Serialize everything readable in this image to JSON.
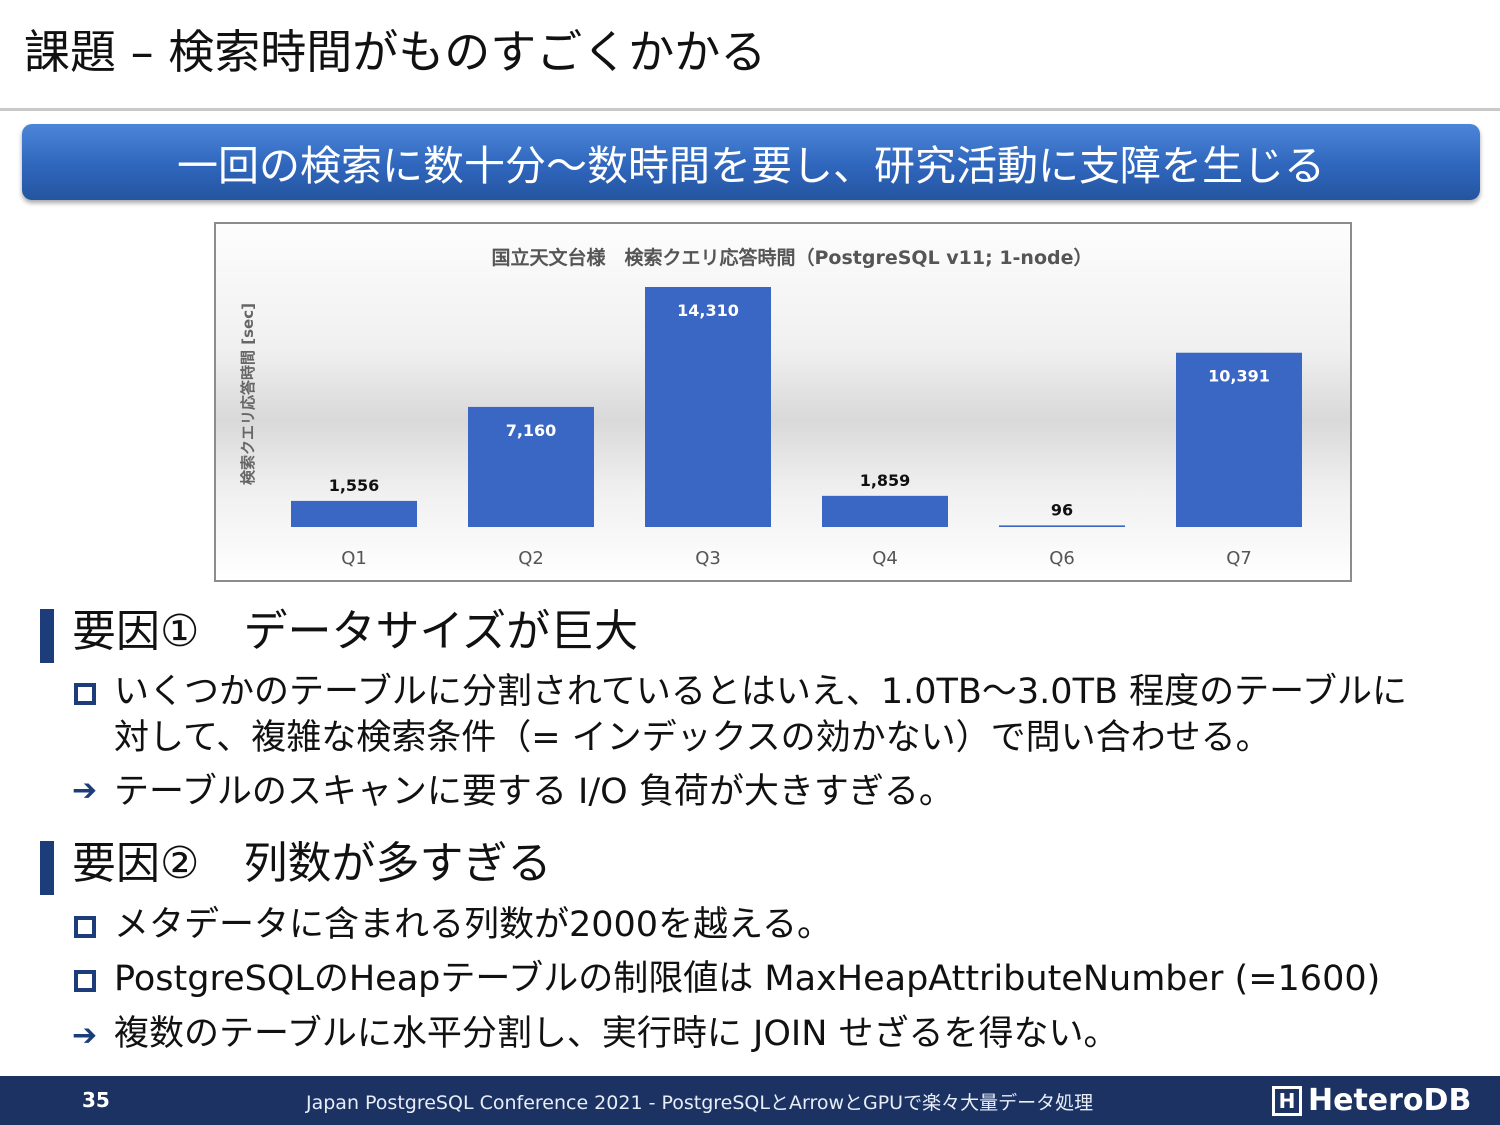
{
  "title": "課題 – 検索時間がものすごくかかる",
  "banner": "一回の検索に数十分～数時間を要し、研究活動に支障を生じる",
  "chart_data": {
    "type": "bar",
    "title": "国立天文台様　検索クエリ応答時間（PostgreSQL v11; 1-node）",
    "ylabel": "検索クエリ応答時間 [sec]",
    "xlabel": "",
    "categories": [
      "Q1",
      "Q2",
      "Q3",
      "Q4",
      "Q6",
      "Q7"
    ],
    "values": [
      1556,
      7160,
      14310,
      1859,
      96,
      10391
    ],
    "value_labels": [
      "1,556",
      "7,160",
      "14,310",
      "1,859",
      "96",
      "10,391"
    ],
    "ylim": [
      0,
      14310
    ],
    "grid": false,
    "bar_color": "#3a66c4"
  },
  "section1": {
    "title": "要因①　データサイズが巨大",
    "bullet1_line1": "いくつかのテーブルに分割されているとはいえ、1.0TB～3.0TB 程度のテーブルに",
    "bullet1_line2": "対して、複雑な検索条件（= インデックスの効かない）で問い合わせる。",
    "arrow1": "テーブルのスキャンに要する I/O 負荷が大きすぎる。"
  },
  "section2": {
    "title": "要因②　列数が多すぎる",
    "bullet1": "メタデータに含まれる列数が2000を越える。",
    "bullet2": "PostgreSQLのHeapテーブルの制限値は MaxHeapAttributeNumber (=1600)",
    "arrow1": "複数のテーブルに水平分割し、実行時に JOIN せざるを得ない。"
  },
  "footer": {
    "page": "35",
    "text": "Japan PostgreSQL Conference 2021 - PostgreSQLとArrowとGPUで楽々大量データ処理",
    "logo_mark": "H",
    "logo": "HeteroDB"
  },
  "colors": {
    "accent": "#1c3d7a",
    "footer_bg": "#1c3262",
    "banner": "#3a73cc"
  }
}
